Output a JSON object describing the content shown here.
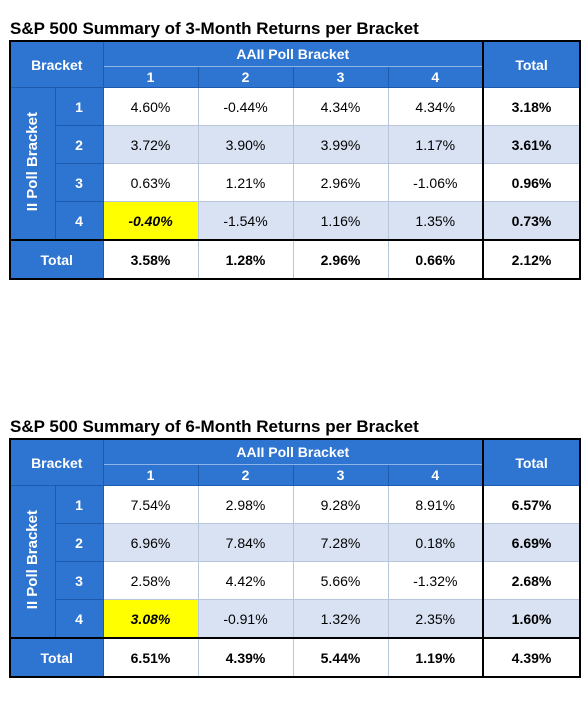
{
  "tables": [
    {
      "title": "S&P 500 Summary of 3-Month Returns per Bracket",
      "bracket_label": "Bracket",
      "aaii_label": "AAII Poll Bracket",
      "ii_label": "II Poll Bracket",
      "total_label": "Total",
      "col_headers": [
        "1",
        "2",
        "3",
        "4"
      ],
      "rows": [
        {
          "label": "1",
          "values": [
            "4.60%",
            "-0.44%",
            "4.34%",
            "4.34%"
          ],
          "total": "3.18%"
        },
        {
          "label": "2",
          "values": [
            "3.72%",
            "3.90%",
            "3.99%",
            "1.17%"
          ],
          "total": "3.61%"
        },
        {
          "label": "3",
          "values": [
            "0.63%",
            "1.21%",
            "2.96%",
            "-1.06%"
          ],
          "total": "0.96%"
        },
        {
          "label": "4",
          "values": [
            "-0.40%",
            "-1.54%",
            "1.16%",
            "1.35%"
          ],
          "total": "0.73%"
        }
      ],
      "totals_row": {
        "label": "Total",
        "values": [
          "3.58%",
          "1.28%",
          "2.96%",
          "0.66%"
        ],
        "total": "2.12%"
      },
      "highlight_color": "#ffff00"
    },
    {
      "title": "S&P 500 Summary of 6-Month Returns per Bracket",
      "bracket_label": "Bracket",
      "aaii_label": "AAII Poll Bracket",
      "ii_label": "II Poll Bracket",
      "total_label": "Total",
      "col_headers": [
        "1",
        "2",
        "3",
        "4"
      ],
      "rows": [
        {
          "label": "1",
          "values": [
            "7.54%",
            "2.98%",
            "9.28%",
            "8.91%"
          ],
          "total": "6.57%"
        },
        {
          "label": "2",
          "values": [
            "6.96%",
            "7.84%",
            "7.28%",
            "0.18%"
          ],
          "total": "6.69%"
        },
        {
          "label": "3",
          "values": [
            "2.58%",
            "4.42%",
            "5.66%",
            "-1.32%"
          ],
          "total": "2.68%"
        },
        {
          "label": "4",
          "values": [
            "3.08%",
            "-0.91%",
            "1.32%",
            "2.35%"
          ],
          "total": "1.60%"
        }
      ],
      "totals_row": {
        "label": "Total",
        "values": [
          "6.51%",
          "4.39%",
          "5.44%",
          "1.19%"
        ],
        "total": "4.39%"
      },
      "highlight_color": "#ffff00"
    }
  ],
  "colors": {
    "header_blue": "#2e75d1",
    "band_blue": "#d9e2f3",
    "highlight_yellow": "#ffff00"
  }
}
